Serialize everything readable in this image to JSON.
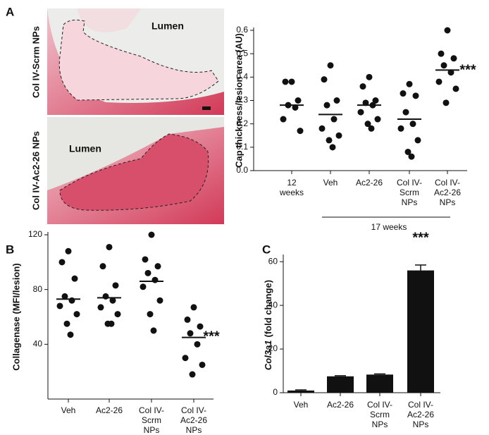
{
  "panel_labels": [
    "A",
    "B",
    "C"
  ],
  "histology": [
    {
      "label": "Col IV-Scrm NPs",
      "lumen": "Lumen"
    },
    {
      "label": "Col IV-Ac2-26 NPs",
      "lumen": "Lumen"
    }
  ],
  "chart_data": [
    {
      "type": "strip",
      "ylabel": "Cap thickness/lesion area (AU)",
      "categories": [
        [
          "12",
          "weeks"
        ],
        [
          "Veh"
        ],
        [
          "Ac2-26"
        ],
        [
          "Col IV-",
          "Scrm",
          "NPs"
        ],
        [
          "Col IV-",
          "Ac2-26",
          "NPs"
        ]
      ],
      "group_label": "17 weeks",
      "values": [
        [
          0.38,
          0.38,
          0.3,
          0.28,
          0.27,
          0.22,
          0.17
        ],
        [
          0.45,
          0.39,
          0.3,
          0.28,
          0.22,
          0.18,
          0.15,
          0.13,
          0.1
        ],
        [
          0.4,
          0.36,
          0.3,
          0.29,
          0.28,
          0.25,
          0.22,
          0.2,
          0.18
        ],
        [
          0.37,
          0.33,
          0.32,
          0.25,
          0.2,
          0.18,
          0.13,
          0.08,
          0.06
        ],
        [
          0.6,
          0.5,
          0.48,
          0.45,
          0.42,
          0.38,
          0.35,
          0.29
        ]
      ],
      "means": [
        0.28,
        0.24,
        0.28,
        0.22,
        0.43
      ],
      "annotation": "***",
      "ylim": [
        0,
        0.6
      ],
      "yticks": [
        {
          "value": 0,
          "label": "0.0"
        },
        0.1,
        0.2,
        0.3,
        0.4,
        0.5,
        0.6
      ],
      "color": "#111111"
    },
    {
      "type": "strip",
      "ylabel": "Collagenase (MFI/lesion)",
      "categories": [
        [
          "Veh"
        ],
        [
          "Ac2-26"
        ],
        [
          "Col IV-",
          "Scrm",
          "NPs"
        ],
        [
          "Col IV-",
          "Ac2-26",
          "NPs"
        ]
      ],
      "values": [
        [
          108,
          100,
          88,
          75,
          72,
          68,
          62,
          55,
          47
        ],
        [
          111,
          97,
          83,
          75,
          72,
          67,
          62,
          55,
          55
        ],
        [
          120,
          102,
          97,
          92,
          87,
          82,
          72,
          62,
          50
        ],
        [
          67,
          58,
          53,
          48,
          40,
          30,
          25,
          18
        ]
      ],
      "means": [
        73,
        74,
        86,
        45
      ],
      "annotation": "***",
      "ylim": [
        0,
        120
      ],
      "yticks": [
        40,
        80,
        120
      ],
      "color": "#111111"
    },
    {
      "type": "bar",
      "ylabel": [
        "Col3a1",
        "(fold change)"
      ],
      "categories": [
        [
          "Veh"
        ],
        [
          "Ac2-26"
        ],
        [
          "Col IV-",
          "Scrm",
          "NPs"
        ],
        [
          "Col IV-",
          "Ac2-26",
          "NPs"
        ]
      ],
      "values": [
        1,
        7.5,
        8.3,
        56
      ],
      "errors": [
        0.3,
        0.3,
        0.3,
        2.5
      ],
      "annotation": "***",
      "ylim": [
        0,
        62
      ],
      "yticks": [
        0,
        20,
        40,
        60
      ],
      "color": "#111111"
    }
  ]
}
